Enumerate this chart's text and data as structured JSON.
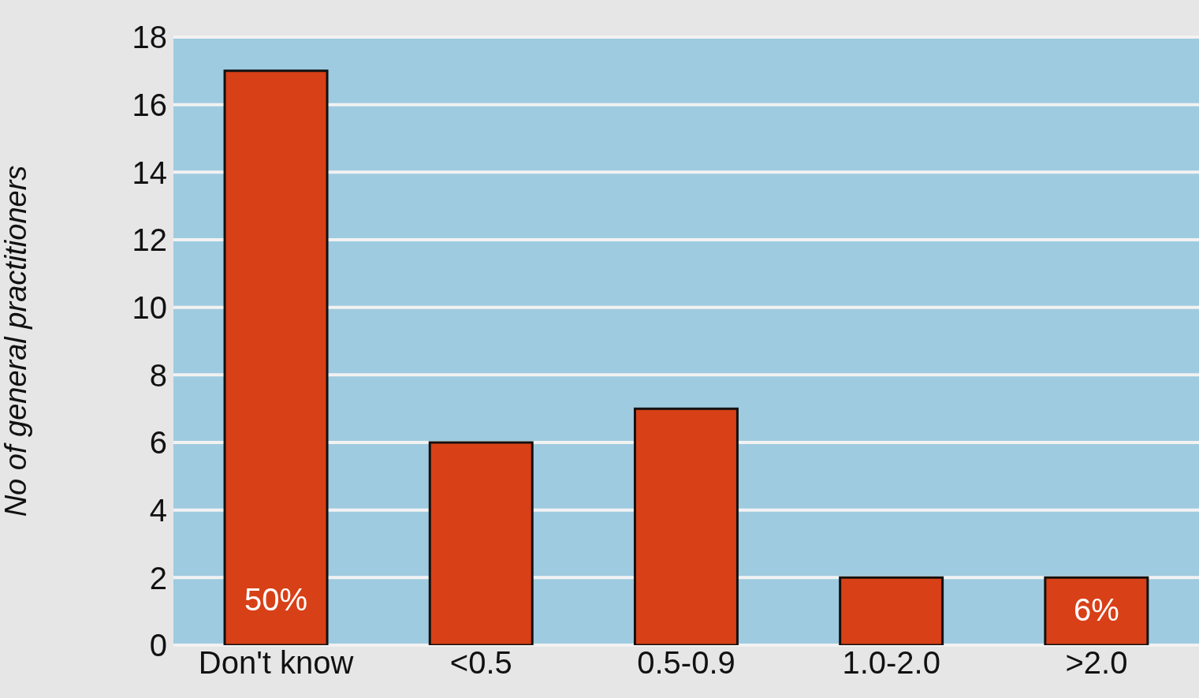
{
  "chart_data": {
    "type": "bar",
    "ylabel": "No of general practitioners",
    "categories": [
      "Don't know",
      "<0.5",
      "0.5-0.9",
      "1.0-2.0",
      ">2.0"
    ],
    "values": [
      17,
      6,
      7,
      2,
      2
    ],
    "annotations": [
      "50%",
      "6%"
    ],
    "color": "#d84017",
    "ylim": [
      0,
      18
    ],
    "yticks": [
      0,
      2,
      4,
      6,
      8,
      10,
      12,
      14,
      16,
      18
    ],
    "grid": "y"
  }
}
